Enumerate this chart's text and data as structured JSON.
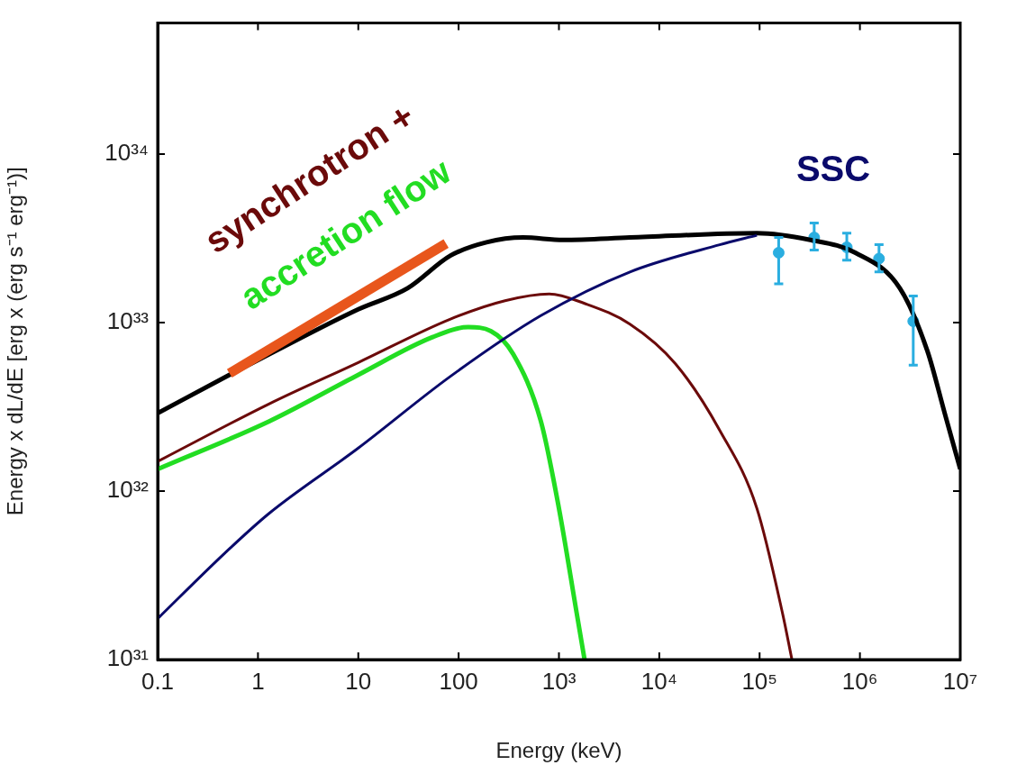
{
  "chart_data": {
    "type": "line",
    "xlabel": "Energy (keV)",
    "ylabel": "Energy x dL/dE [erg x (erg s⁻¹ erg⁻¹)]",
    "log": "xy",
    "grid": false,
    "legend": false,
    "marker": "none",
    "xlim": [
      0.1,
      10000000
    ],
    "xticks": [
      0.1,
      1,
      10,
      100,
      {
        "value": 1000,
        "label": "10³"
      },
      {
        "value": 10000,
        "label": "10⁴"
      },
      {
        "value": 100000,
        "label": "10⁵"
      },
      {
        "value": 1000000,
        "label": "10⁶"
      },
      {
        "value": 10000000,
        "label": "10⁷"
      }
    ],
    "ylim": [
      1e+31,
      6e+34
    ],
    "yticks": [
      {
        "value": 1e+31,
        "label": "10³¹"
      },
      {
        "value": 1e+32,
        "label": "10³²"
      },
      {
        "value": 1e+33,
        "label": "10³³"
      },
      {
        "value": 1e+34,
        "label": "10³⁴"
      }
    ],
    "series": [
      {
        "name": "SSC",
        "color": "#0a0a6b",
        "x": [
          0.1,
          0.47,
          1.3,
          10,
          83,
          660,
          5100,
          40000,
          94000
        ],
        "values": [
          1.75e+31,
          4.3e+31,
          7.4e+31,
          1.8e+32,
          4.8e+32,
          1.1e+33,
          2e+33,
          2.9e+33,
          3.3e+33
        ]
      },
      {
        "name": "synchrotron +",
        "color": "#6b0a0a",
        "x": [
          0.1,
          1.3,
          10,
          83,
          290,
          800,
          1800,
          5100,
          14500,
          40000,
          94000,
          170000,
          210000
        ],
        "values": [
          1.5e+32,
          3.3e+32,
          5.8e+32,
          1.05e+33,
          1.35e+33,
          1.48e+33,
          1.3e+33,
          9.8e+32,
          5.7e+32,
          2.3e+32,
          7.9e+31,
          1.86e+31,
          1e+31
        ]
      },
      {
        "name": "accretion flow",
        "color": "#22dd22",
        "x": [
          0.1,
          1.3,
          10,
          55,
          125,
          210,
          350,
          660,
          1000,
          1500,
          1800
        ],
        "values": [
          1.35e+32,
          2.6e+32,
          4.9e+32,
          8.2e+32,
          9.4e+32,
          8.9e+32,
          6.5e+32,
          2.6e+32,
          7.9e+31,
          1.9e+31,
          1e+31
        ]
      },
      {
        "color": "#e8561c",
        "x": [
          0.52,
          75
        ],
        "values": [
          5e+32,
          2.95e+33
        ]
      },
      {
        "color": "#000000",
        "x": [
          0.1,
          0.52,
          1.3,
          10,
          31,
          83,
          190,
          440,
          1100,
          5100,
          94000,
          320000,
          900000,
          2500000,
          4700000,
          7000000,
          10000000
        ],
        "values": [
          2.9e+32,
          4.9e+32,
          6.5e+32,
          1.2e+33,
          1.6e+33,
          2.5e+33,
          3e+33,
          3.2e+33,
          3.1e+33,
          3.2e+33,
          3.4e+33,
          3.1e+33,
          2.6e+33,
          1.6e+33,
          6.8e+32,
          2.9e+32,
          1.35e+32
        ]
      },
      {
        "type": "scatter",
        "color": "#2aaee0",
        "marker": "circle",
        "x": [
          155000,
          350000,
          740000,
          1550000,
          3400000
        ],
        "values": [
          2.6e+33,
          3.2e+33,
          2.8e+33,
          2.4e+33,
          1.02e+33
        ],
        "errors": [
          [
            1.7e+33,
            3.2e+33
          ],
          [
            2.7e+33,
            3.9e+33
          ],
          [
            2.35e+33,
            3.4e+33
          ],
          [
            2e+33,
            2.9e+33
          ],
          [
            5.6e+32,
            1.44e+33
          ]
        ]
      }
    ]
  }
}
